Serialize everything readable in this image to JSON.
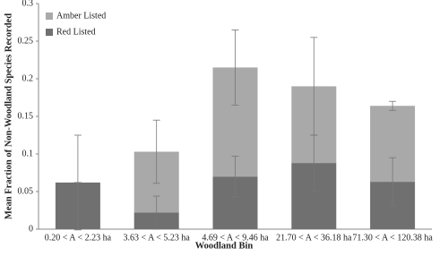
{
  "chart_data": {
    "type": "stacked_bar",
    "x_label": "Woodland Bin",
    "y_label": "Mean Fraction of Non-Woodland Species Recorded",
    "categories": [
      "0.20 < A < 2.23 ha",
      "3.63 < A < 5.23 ha",
      "4.69 < A < 9.46 ha",
      "21.70 < A < 36.18 ha",
      "71.30 < A < 120.38 ha"
    ],
    "series": [
      {
        "name": "Red Listed",
        "color": "#707070",
        "values": [
          0.062,
          0.022,
          0.07,
          0.088,
          0.063
        ],
        "errors": [
          0.063,
          0.022,
          0.027,
          0.037,
          0.032
        ]
      },
      {
        "name": "Amber Listed",
        "color": "#a9a9a9",
        "values": [
          0,
          0.081,
          0.145,
          0.102,
          0.101
        ],
        "errors": [
          0,
          0.042,
          0.05,
          0.065,
          0.006
        ]
      }
    ],
    "ylim": [
      0,
      0.3
    ],
    "yticks": [
      0,
      0.05,
      0.1,
      0.15,
      0.2,
      0.25,
      0.3
    ],
    "legend": "upper left"
  }
}
